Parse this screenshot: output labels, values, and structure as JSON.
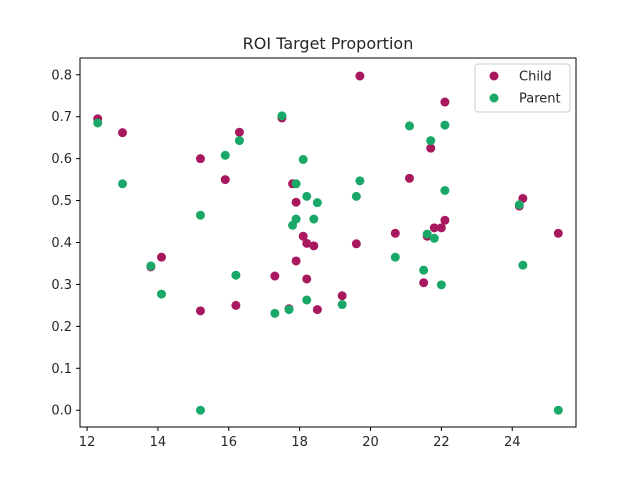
{
  "chart_data": {
    "type": "scatter",
    "title": "ROI Target Proportion",
    "xlabel": "",
    "ylabel": "",
    "xlim": [
      11.8,
      25.8
    ],
    "ylim": [
      -0.04,
      0.84
    ],
    "xticks": [
      12,
      14,
      16,
      18,
      20,
      22,
      24
    ],
    "yticks": [
      0.0,
      0.1,
      0.2,
      0.3,
      0.4,
      0.5,
      0.6,
      0.7,
      0.8
    ],
    "legend_position": "top-right",
    "grid": false,
    "series": [
      {
        "name": "Child",
        "color": "#a8185f",
        "points": [
          [
            12.3,
            0.695
          ],
          [
            13.0,
            0.662
          ],
          [
            13.8,
            0.342
          ],
          [
            14.1,
            0.365
          ],
          [
            15.2,
            0.6
          ],
          [
            15.2,
            0.237
          ],
          [
            15.9,
            0.55
          ],
          [
            16.2,
            0.25
          ],
          [
            16.3,
            0.663
          ],
          [
            17.3,
            0.32
          ],
          [
            17.5,
            0.697
          ],
          [
            17.7,
            0.242
          ],
          [
            17.8,
            0.54
          ],
          [
            17.9,
            0.496
          ],
          [
            17.9,
            0.356
          ],
          [
            18.1,
            0.415
          ],
          [
            18.2,
            0.398
          ],
          [
            18.2,
            0.313
          ],
          [
            18.4,
            0.392
          ],
          [
            18.5,
            0.24
          ],
          [
            19.2,
            0.273
          ],
          [
            19.6,
            0.397
          ],
          [
            19.7,
            0.797
          ],
          [
            20.7,
            0.422
          ],
          [
            21.1,
            0.553
          ],
          [
            21.5,
            0.304
          ],
          [
            21.6,
            0.415
          ],
          [
            21.7,
            0.625
          ],
          [
            21.8,
            0.435
          ],
          [
            22.0,
            0.435
          ],
          [
            22.1,
            0.735
          ],
          [
            22.1,
            0.453
          ],
          [
            24.2,
            0.487
          ],
          [
            24.3,
            0.505
          ],
          [
            25.3,
            0.422
          ]
        ]
      },
      {
        "name": "Parent",
        "color": "#1aa869",
        "points": [
          [
            12.3,
            0.685
          ],
          [
            13.0,
            0.54
          ],
          [
            13.8,
            0.344
          ],
          [
            14.1,
            0.277
          ],
          [
            15.2,
            0.465
          ],
          [
            15.2,
            0.0
          ],
          [
            15.9,
            0.608
          ],
          [
            16.2,
            0.322
          ],
          [
            16.3,
            0.643
          ],
          [
            17.3,
            0.231
          ],
          [
            17.5,
            0.702
          ],
          [
            17.7,
            0.24
          ],
          [
            17.8,
            0.441
          ],
          [
            17.9,
            0.456
          ],
          [
            17.9,
            0.54
          ],
          [
            18.1,
            0.598
          ],
          [
            18.2,
            0.51
          ],
          [
            18.2,
            0.263
          ],
          [
            18.4,
            0.456
          ],
          [
            18.5,
            0.495
          ],
          [
            19.2,
            0.252
          ],
          [
            19.6,
            0.51
          ],
          [
            19.7,
            0.547
          ],
          [
            20.7,
            0.365
          ],
          [
            21.1,
            0.678
          ],
          [
            21.5,
            0.334
          ],
          [
            21.6,
            0.42
          ],
          [
            21.7,
            0.643
          ],
          [
            21.8,
            0.41
          ],
          [
            22.0,
            0.299
          ],
          [
            22.1,
            0.68
          ],
          [
            22.1,
            0.524
          ],
          [
            24.2,
            0.49
          ],
          [
            24.3,
            0.346
          ],
          [
            25.3,
            0.0
          ]
        ]
      }
    ]
  }
}
